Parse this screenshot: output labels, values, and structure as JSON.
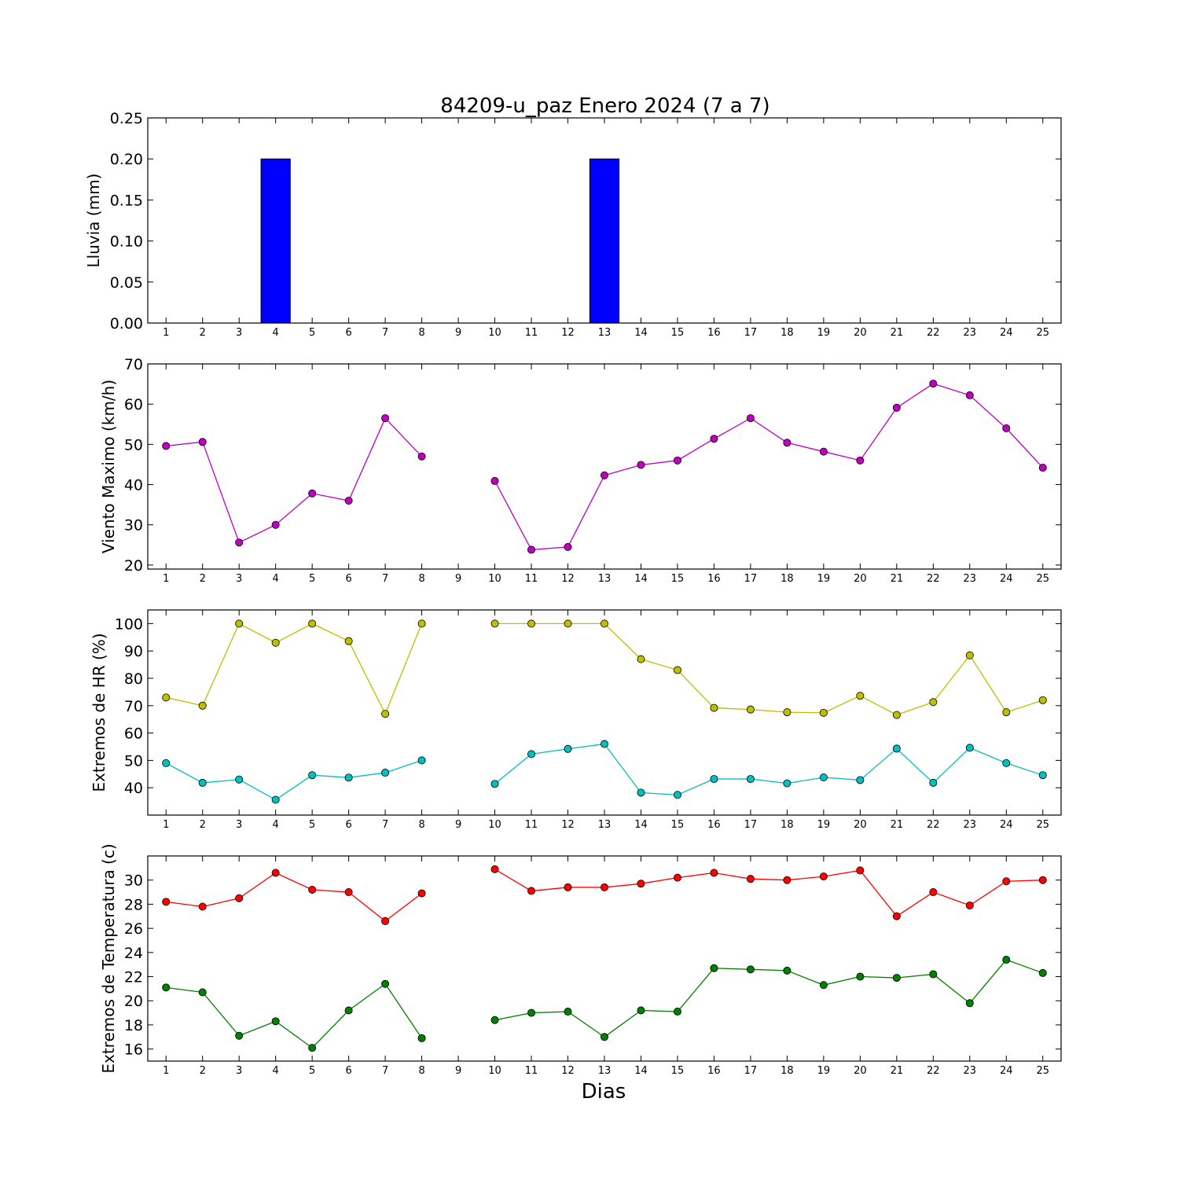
{
  "title": "84209-u_paz Enero 2024  (7 a 7)",
  "xlabel": "Dias",
  "chart_data": [
    {
      "type": "bar",
      "ylabel": "Lluvia (mm)",
      "x": [
        1,
        2,
        3,
        4,
        5,
        6,
        7,
        8,
        9,
        10,
        11,
        12,
        13,
        14,
        15,
        16,
        17,
        18,
        19,
        20,
        21,
        22,
        23,
        24,
        25
      ],
      "ylim": [
        0,
        0.25
      ],
      "yticks": [
        "0.00",
        "0.05",
        "0.10",
        "0.15",
        "0.20",
        "0.25"
      ],
      "series": [
        {
          "color": "#0000ff",
          "values": [
            0,
            0,
            0,
            0.2,
            0,
            0,
            0,
            0,
            null,
            0,
            0,
            0,
            0.2,
            0,
            0,
            0,
            0,
            0,
            0,
            0,
            0,
            0,
            0,
            0,
            0
          ]
        }
      ]
    },
    {
      "type": "line",
      "ylabel": "Viento Maximo (km/h)",
      "x": [
        1,
        2,
        3,
        4,
        5,
        6,
        7,
        8,
        9,
        10,
        11,
        12,
        13,
        14,
        15,
        16,
        17,
        18,
        19,
        20,
        21,
        22,
        23,
        24,
        25
      ],
      "ylim": [
        19,
        70
      ],
      "yticks": [
        "20",
        "30",
        "40",
        "50",
        "60",
        "70"
      ],
      "series": [
        {
          "color": "#bf00bf",
          "values": [
            49.6,
            50.6,
            25.6,
            30.0,
            37.8,
            36.0,
            56.5,
            47.0,
            null,
            40.9,
            23.8,
            24.5,
            42.3,
            44.9,
            46.0,
            51.4,
            56.5,
            50.4,
            48.2,
            46.0,
            59.1,
            65.1,
            62.2,
            54.0,
            44.2
          ]
        }
      ]
    },
    {
      "type": "line",
      "ylabel": "Extremos de HR (%)",
      "x": [
        1,
        2,
        3,
        4,
        5,
        6,
        7,
        8,
        9,
        10,
        11,
        12,
        13,
        14,
        15,
        16,
        17,
        18,
        19,
        20,
        21,
        22,
        23,
        24,
        25
      ],
      "ylim": [
        30,
        105
      ],
      "yticks": [
        "40",
        "50",
        "60",
        "70",
        "80",
        "90",
        "100"
      ],
      "series": [
        {
          "color": "#bfbf00",
          "values": [
            73,
            70,
            100,
            93,
            100,
            93.6,
            67,
            100,
            null,
            100,
            100,
            100,
            100,
            87,
            83,
            69.2,
            68.6,
            67.6,
            67.4,
            73.6,
            66.6,
            71.3,
            88.4,
            67.6,
            72
          ]
        },
        {
          "color": "#00bfbf",
          "values": [
            49,
            41.8,
            43,
            35.6,
            44.6,
            43.7,
            45.5,
            50,
            null,
            41.4,
            52.3,
            54.2,
            56,
            38.2,
            37.4,
            43.2,
            43.2,
            41.6,
            43.8,
            42.8,
            54.3,
            41.8,
            54.6,
            49,
            44.6
          ]
        }
      ]
    },
    {
      "type": "line",
      "ylabel": "Extremos de Temperatura (c)",
      "x": [
        1,
        2,
        3,
        4,
        5,
        6,
        7,
        8,
        9,
        10,
        11,
        12,
        13,
        14,
        15,
        16,
        17,
        18,
        19,
        20,
        21,
        22,
        23,
        24,
        25
      ],
      "ylim": [
        15,
        32
      ],
      "yticks": [
        "16",
        "18",
        "20",
        "22",
        "24",
        "26",
        "28",
        "30"
      ],
      "series": [
        {
          "color": "#ff0000",
          "values": [
            28.2,
            27.8,
            28.5,
            30.6,
            29.2,
            29.0,
            26.6,
            28.9,
            null,
            30.9,
            29.1,
            29.4,
            29.4,
            29.7,
            30.2,
            30.6,
            30.1,
            30.0,
            30.3,
            30.8,
            27.0,
            29.0,
            27.9,
            29.9,
            30.0
          ]
        },
        {
          "color": "#008000",
          "values": [
            21.1,
            20.7,
            17.1,
            18.3,
            16.1,
            19.2,
            21.4,
            16.9,
            null,
            18.4,
            19.0,
            19.1,
            17.0,
            19.2,
            19.1,
            22.7,
            22.6,
            22.5,
            21.3,
            22.0,
            21.9,
            22.2,
            19.8,
            23.4,
            22.3
          ]
        }
      ]
    }
  ]
}
